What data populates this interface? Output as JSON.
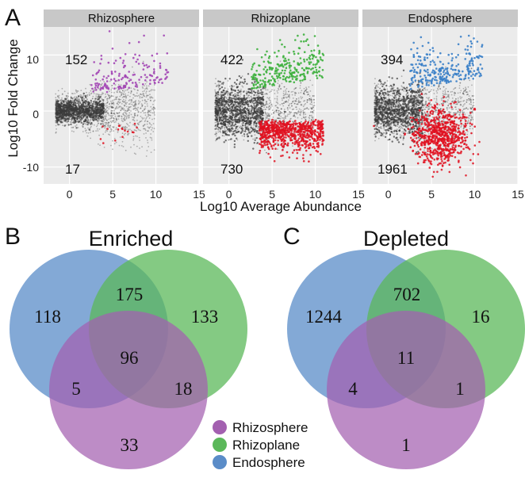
{
  "panel_labels": {
    "a": "A",
    "b": "B",
    "c": "C"
  },
  "colors": {
    "strip_bg": "#c8c8c8",
    "panel_bg": "#ebebeb",
    "grid": "#ffffff",
    "cloud": "#3a3a3a",
    "depleted_points": "#e01020",
    "rhizosphere": "#a347b5",
    "rhizoplane": "#3cb03c",
    "endosphere": "#3a7fc8",
    "venn_rhizosphere": "#a360b0",
    "venn_rhizoplane": "#5bb85a",
    "venn_endosphere": "#5a8cc8"
  },
  "chart_data": [
    {
      "type": "scatter",
      "description_axes": {
        "xlabel": "Log10 Average Abundance",
        "ylabel": "Log10 Fold Change",
        "xlim": [
          -3,
          15
        ],
        "ylim": [
          -13,
          15
        ],
        "xticks": [
          "0",
          "5",
          "10",
          "15"
        ],
        "yticks": [
          "10",
          "0",
          "-10"
        ],
        "grid": true
      },
      "facets": [
        {
          "name": "Rhizosphere",
          "enriched_count": "152",
          "depleted_count": "17",
          "enriched_color_key": "rhizosphere"
        },
        {
          "name": "Rhizoplane",
          "enriched_count": "422",
          "depleted_count": "730",
          "enriched_color_key": "rhizoplane"
        },
        {
          "name": "Endosphere",
          "enriched_count": "394",
          "depleted_count": "1961",
          "enriched_color_key": "endosphere"
        }
      ]
    },
    {
      "type": "venn",
      "title": "Enriched",
      "sets": [
        "Endosphere",
        "Rhizoplane",
        "Rhizosphere"
      ],
      "regions": {
        "endosphere_only": "118",
        "endosphere_rhizoplane": "175",
        "rhizoplane_only": "133",
        "all_three": "96",
        "endosphere_rhizosphere": "5",
        "rhizoplane_rhizosphere": "18",
        "rhizosphere_only": "33"
      }
    },
    {
      "type": "venn",
      "title": "Depleted",
      "sets": [
        "Endosphere",
        "Rhizoplane",
        "Rhizosphere"
      ],
      "regions": {
        "endosphere_only": "1244",
        "endosphere_rhizoplane": "702",
        "rhizoplane_only": "16",
        "all_three": "11",
        "endosphere_rhizosphere": "4",
        "rhizoplane_rhizosphere": "1",
        "rhizosphere_only": "1"
      }
    }
  ],
  "legend": [
    {
      "label": "Rhizosphere",
      "color_key": "venn_rhizosphere"
    },
    {
      "label": "Rhizoplane",
      "color_key": "venn_rhizoplane"
    },
    {
      "label": "Endosphere",
      "color_key": "venn_endosphere"
    }
  ]
}
